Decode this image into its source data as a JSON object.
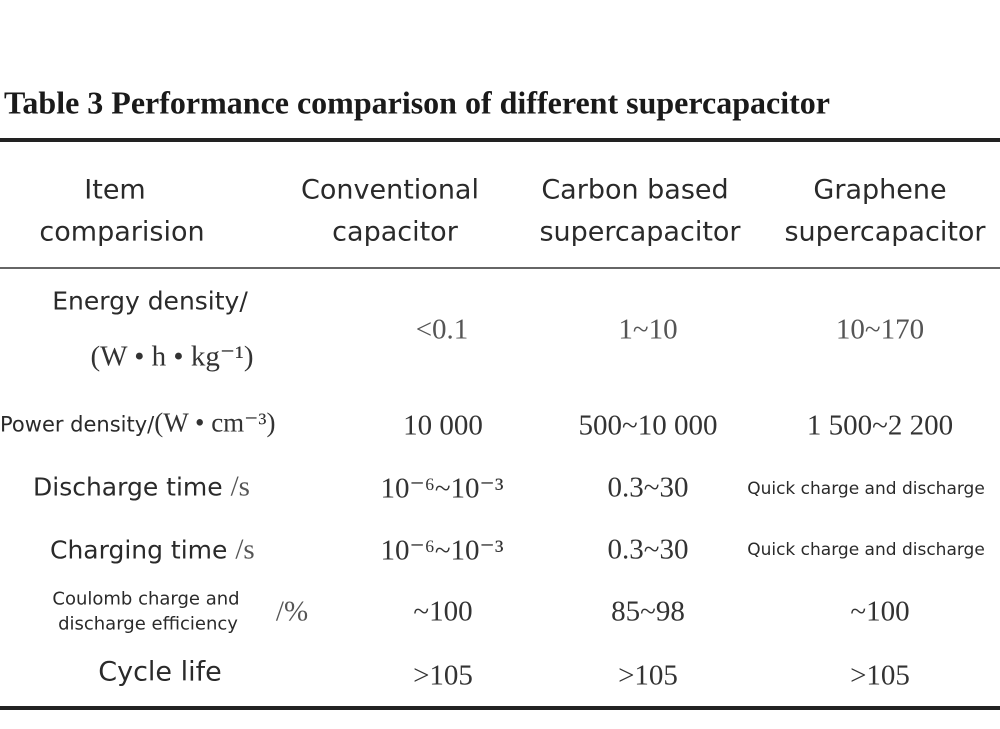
{
  "title": "Table 3  Performance comparison of different supercapacitor",
  "table": {
    "header": [
      [
        "Item",
        "comparision"
      ],
      [
        "Conventional",
        "capacitor"
      ],
      [
        "Carbon based",
        "supercapacitor"
      ],
      [
        "Graphene",
        "supercapacitor"
      ]
    ],
    "rows": [
      {
        "label": [
          "Energy density/"
        ],
        "unit": "(W • h • kg⁻¹)",
        "values": [
          "<0.1",
          "1~10",
          "10~170"
        ]
      },
      {
        "label": [
          "Power density/"
        ],
        "unit": "(W • cm⁻³)",
        "values": [
          "10 000",
          "500~10 000",
          "1 500~2 200"
        ]
      },
      {
        "label": [
          "Discharge time"
        ],
        "unit": "/s",
        "values": [
          "10⁻⁶~10⁻³",
          "0.3~30",
          "Quick charge and discharge"
        ]
      },
      {
        "label": [
          "Charging time"
        ],
        "unit": "/s",
        "values": [
          "10⁻⁶~10⁻³",
          "0.3~30",
          "Quick charge and discharge"
        ]
      },
      {
        "label": [
          "Coulomb charge and",
          "discharge efficiency"
        ],
        "unit": "/%",
        "values": [
          "~100",
          "85~98",
          "~100"
        ]
      },
      {
        "label": [
          "Cycle life"
        ],
        "values": [
          ">105",
          ">105",
          ">105"
        ]
      }
    ]
  }
}
